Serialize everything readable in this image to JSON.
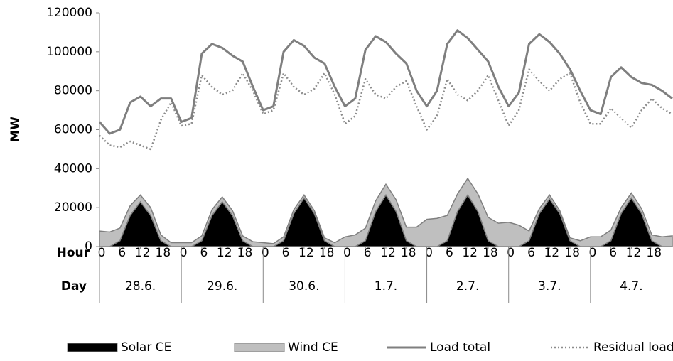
{
  "chart_data": {
    "type": "combo",
    "y_label": "MW",
    "x_row_labels": {
      "hour": "Hour",
      "day": "Day"
    },
    "days": [
      "28.6.",
      "29.6.",
      "30.6.",
      "1.7.",
      "2.7.",
      "3.7.",
      "4.7."
    ],
    "x": [
      0,
      3,
      6,
      9,
      12,
      15,
      18,
      21,
      24,
      27,
      30,
      33,
      36,
      39,
      42,
      45,
      48,
      51,
      54,
      57,
      60,
      63,
      66,
      69,
      72,
      75,
      78,
      81,
      84,
      87,
      90,
      93,
      96,
      99,
      102,
      105,
      108,
      111,
      114,
      117,
      120,
      123,
      126,
      129,
      132,
      135,
      138,
      141,
      144,
      147,
      150,
      153,
      156,
      159,
      162,
      165,
      168
    ],
    "xlim": [
      0,
      168
    ],
    "xticks": [
      0,
      6,
      12,
      18,
      {
        "value": 24,
        "label": "0"
      },
      {
        "value": 30,
        "label": "6"
      },
      {
        "value": 36,
        "label": "12"
      },
      {
        "value": 42,
        "label": "18"
      },
      {
        "value": 48,
        "label": "0"
      },
      {
        "value": 54,
        "label": "6"
      },
      {
        "value": 60,
        "label": "12"
      },
      {
        "value": 66,
        "label": "18"
      },
      {
        "value": 72,
        "label": "0"
      },
      {
        "value": 78,
        "label": "6"
      },
      {
        "value": 84,
        "label": "12"
      },
      {
        "value": 90,
        "label": "18"
      },
      {
        "value": 96,
        "label": "0"
      },
      {
        "value": 102,
        "label": "6"
      },
      {
        "value": 108,
        "label": "12"
      },
      {
        "value": 114,
        "label": "18"
      },
      {
        "value": 120,
        "label": "0"
      },
      {
        "value": 126,
        "label": "6"
      },
      {
        "value": 132,
        "label": "12"
      },
      {
        "value": 138,
        "label": "18"
      },
      {
        "value": 144,
        "label": "0"
      },
      {
        "value": 150,
        "label": "6"
      },
      {
        "value": 156,
        "label": "12"
      },
      {
        "value": 162,
        "label": "18"
      }
    ],
    "ylim": [
      0,
      120000
    ],
    "yticks": [
      0,
      20000,
      40000,
      60000,
      80000,
      100000,
      120000
    ],
    "grid": false,
    "legend": "bottom",
    "series": [
      {
        "name": "Solar CE",
        "type": "area",
        "color": "#000000",
        "values": [
          0,
          0,
          3000,
          16000,
          23000,
          16000,
          3000,
          0,
          0,
          0,
          3000,
          16000,
          23000,
          16000,
          3000,
          0,
          0,
          0,
          3000,
          17000,
          25000,
          17000,
          3000,
          0,
          0,
          0,
          3000,
          18000,
          26500,
          18000,
          3000,
          0,
          0,
          0,
          3000,
          18000,
          26500,
          18000,
          3000,
          0,
          0,
          0,
          3000,
          17000,
          24500,
          17000,
          3000,
          0,
          0,
          0,
          3000,
          17000,
          25000,
          17000,
          3000,
          0,
          0
        ]
      },
      {
        "name": "Wind CE",
        "type": "area",
        "stack": true,
        "color": "#bfbfbf",
        "values": [
          8000,
          7500,
          6500,
          5000,
          3500,
          4000,
          3000,
          2000,
          2000,
          2000,
          2500,
          3000,
          2500,
          2500,
          2500,
          2500,
          2000,
          1500,
          2000,
          2000,
          1500,
          1500,
          1500,
          2000,
          5000,
          6000,
          6500,
          5500,
          5500,
          6000,
          7000,
          10000,
          14000,
          14500,
          13000,
          9000,
          8500,
          9000,
          12000,
          12000,
          12500,
          11000,
          5000,
          2500,
          2000,
          1500,
          1500,
          3000,
          5000,
          5000,
          5500,
          3000,
          2500,
          2500,
          3000,
          5000,
          5500
        ]
      },
      {
        "name": "Load total",
        "type": "line",
        "color": "#7f7f7f",
        "values": [
          64000,
          58000,
          60000,
          74000,
          77000,
          72000,
          76000,
          76000,
          64000,
          66000,
          99000,
          104000,
          102000,
          98000,
          95000,
          82000,
          70000,
          72000,
          100000,
          106000,
          103000,
          97000,
          94000,
          82000,
          72000,
          76000,
          101000,
          108000,
          105000,
          99000,
          94000,
          80000,
          72000,
          80000,
          104000,
          111000,
          107000,
          101000,
          95000,
          82000,
          72000,
          79000,
          104000,
          109000,
          105000,
          99000,
          91000,
          80000,
          70000,
          68000,
          87000,
          92000,
          87000,
          84000,
          83000,
          80000,
          76000
        ]
      },
      {
        "name": "Residual load",
        "type": "line",
        "dashed": true,
        "color": "#8c8c8c",
        "values": [
          57000,
          52000,
          51000,
          54000,
          52000,
          50000,
          65000,
          74000,
          62000,
          63000,
          88000,
          82000,
          78000,
          80000,
          89000,
          80000,
          68000,
          70000,
          89000,
          82000,
          78000,
          81000,
          89000,
          78000,
          63000,
          67000,
          86000,
          78000,
          76000,
          82000,
          85000,
          72000,
          60000,
          67000,
          86000,
          78000,
          75000,
          80000,
          88000,
          75000,
          62000,
          70000,
          91000,
          85000,
          80000,
          86000,
          89000,
          74000,
          63000,
          63000,
          71000,
          66000,
          61000,
          70000,
          76000,
          71000,
          68000
        ]
      }
    ]
  }
}
